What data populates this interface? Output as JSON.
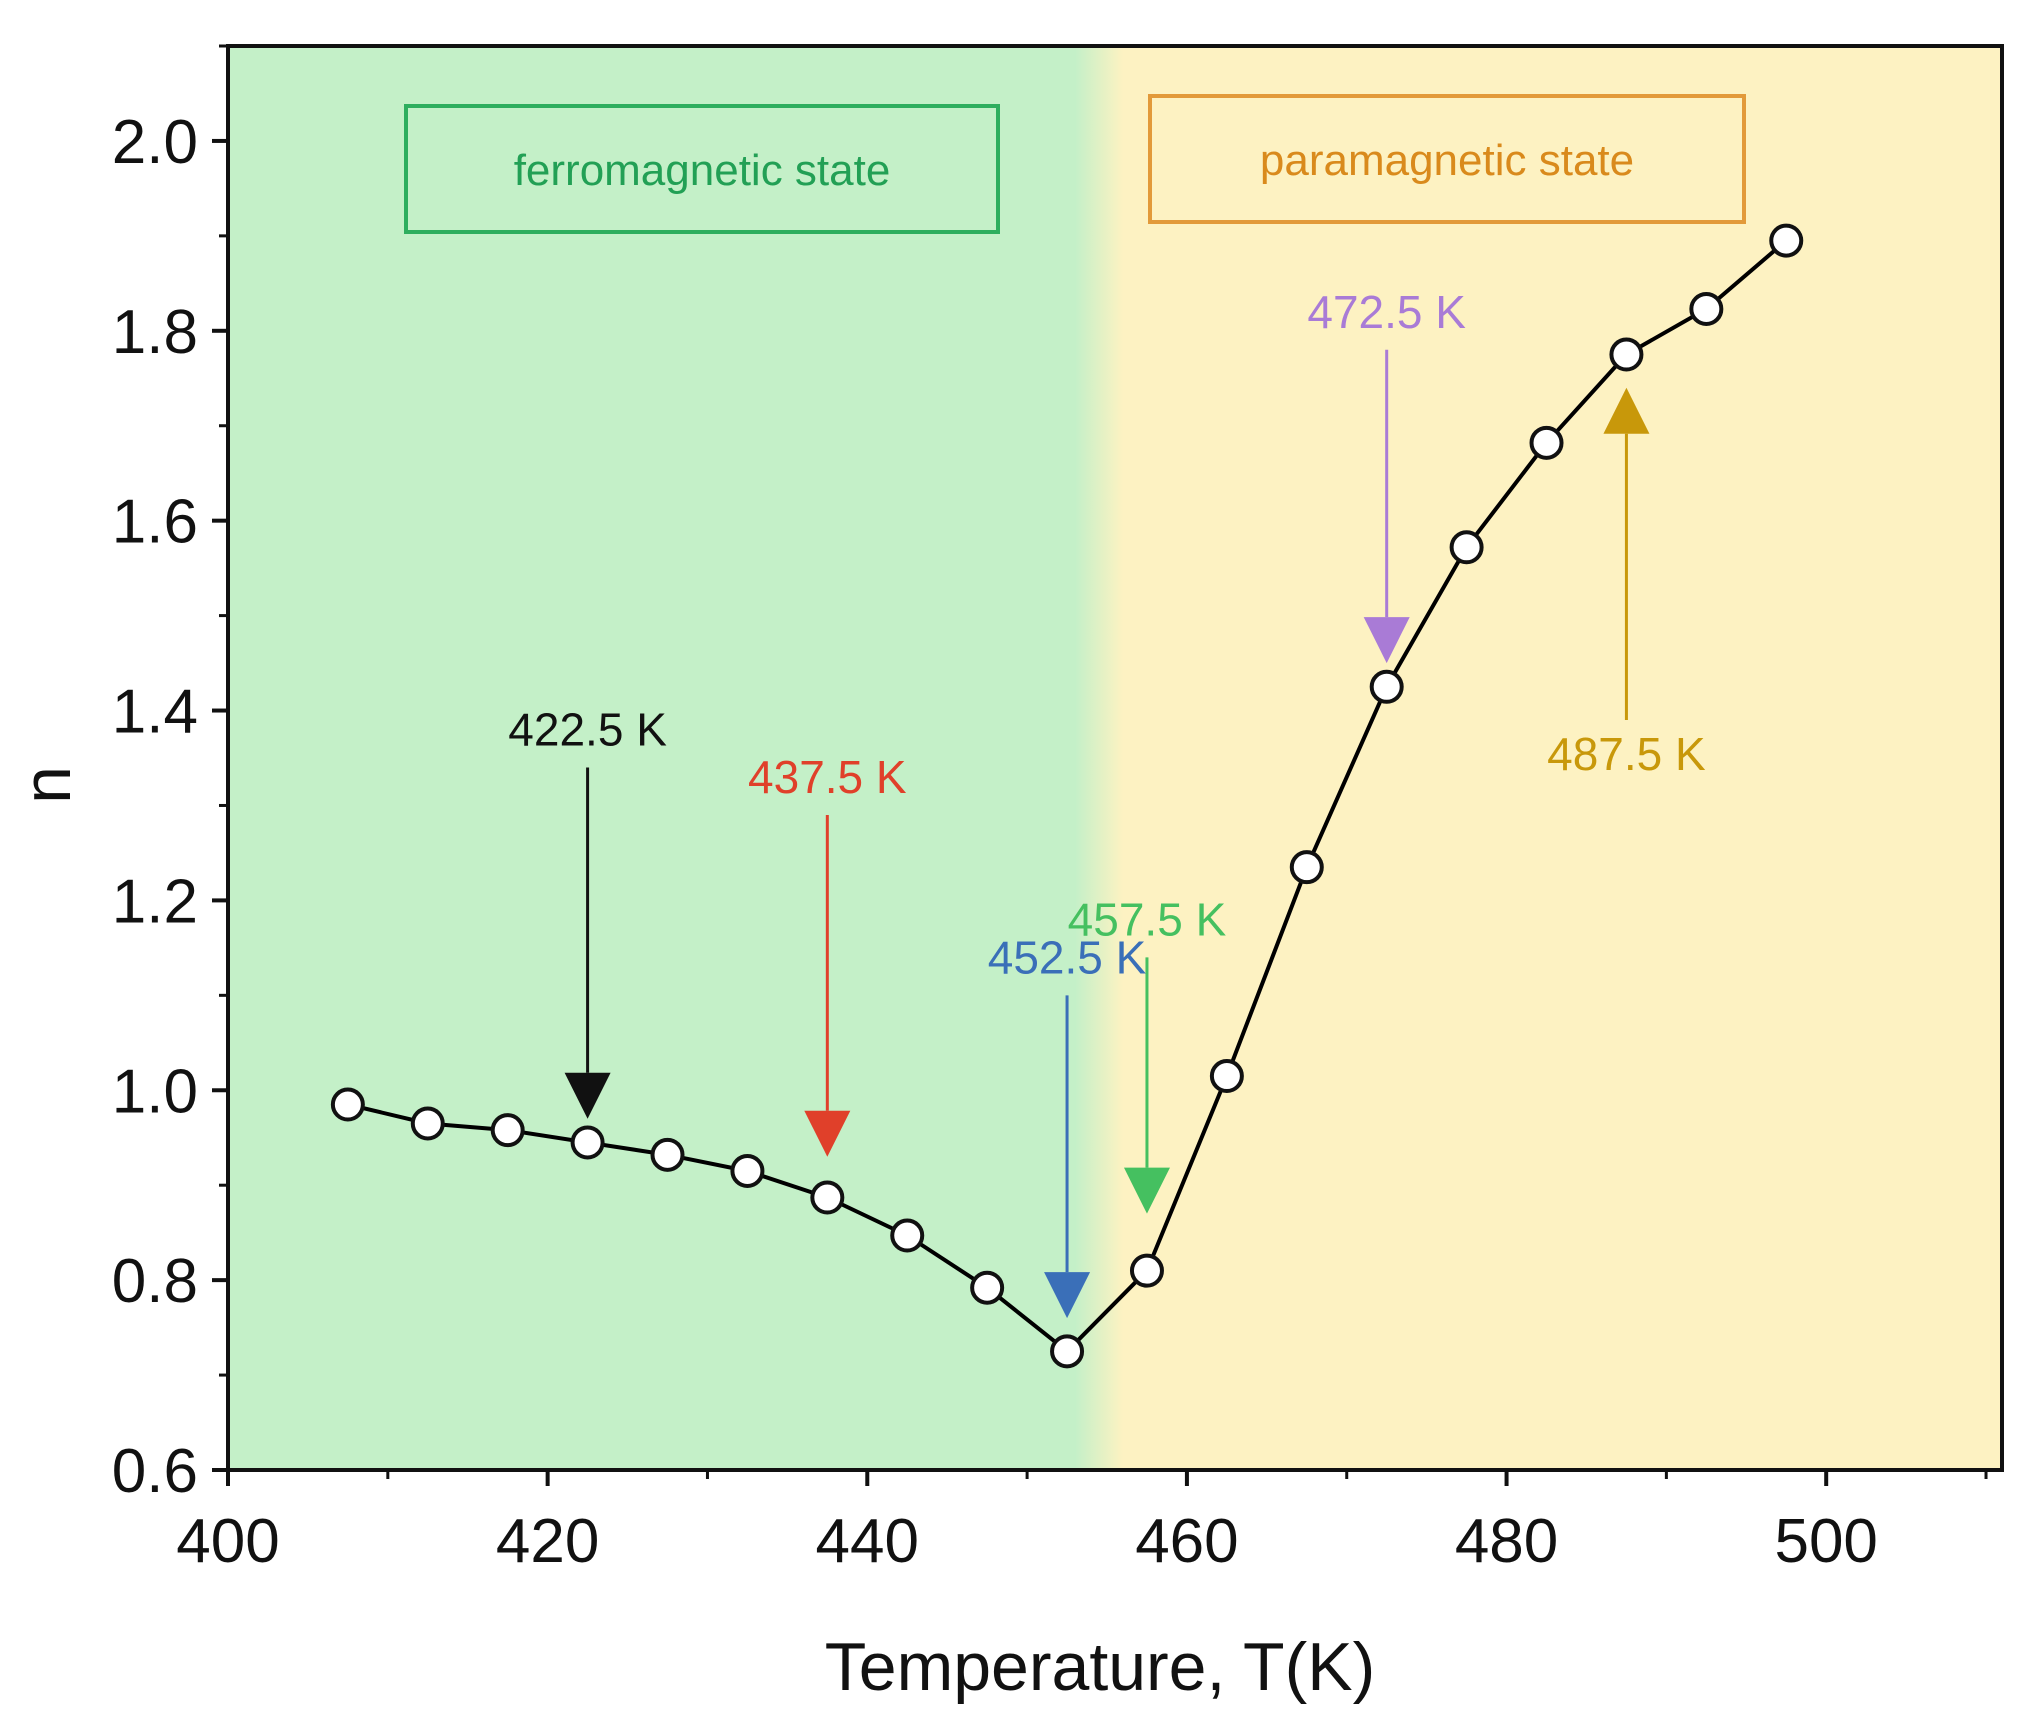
{
  "chart_data": {
    "type": "line",
    "xlabel": "Temperature, T(K)",
    "ylabel": "n",
    "xlim": [
      400,
      511
    ],
    "ylim": [
      0.6,
      2.1
    ],
    "x_ticks": [
      400,
      420,
      440,
      460,
      480,
      500
    ],
    "y_ticks": [
      0.6,
      0.8,
      1.0,
      1.2,
      1.4,
      1.6,
      1.8,
      2.0
    ],
    "x_tick_labels": [
      "400",
      "420",
      "440",
      "460",
      "480",
      "500"
    ],
    "y_tick_labels": [
      "0.6",
      "0.8",
      "1.0",
      "1.2",
      "1.4",
      "1.6",
      "1.8",
      "2.0"
    ],
    "series": [
      {
        "x": [
          407.5,
          412.5,
          417.5,
          422.5,
          427.5,
          432.5,
          437.5,
          442.5,
          447.5,
          452.5,
          457.5,
          462.5,
          467.5,
          472.5,
          477.5,
          482.5,
          487.5,
          492.5,
          497.5
        ],
        "y": [
          0.985,
          0.965,
          0.958,
          0.945,
          0.932,
          0.915,
          0.887,
          0.847,
          0.792,
          0.725,
          0.81,
          1.015,
          1.235,
          1.425,
          1.572,
          1.682,
          1.775,
          1.823,
          1.895
        ],
        "color": "#000000",
        "marker": "open-circle"
      }
    ],
    "regions": [
      {
        "label": "ferromagnetic state",
        "color": "#c4f0c8",
        "text_color": "#22a055",
        "border_color": "#2eae5e",
        "x_from": 400,
        "x_to": 453
      },
      {
        "label": "paramagnetic state",
        "color": "#fdf2c2",
        "text_color": "#d98a1c",
        "border_color": "#e29a3a",
        "x_from": 456,
        "x_to": 511
      }
    ],
    "annotations": [
      {
        "label": "422.5 K",
        "x": 422.5,
        "color": "#111111",
        "direction": "down",
        "y_tail": 1.34,
        "y_head": 0.97
      },
      {
        "label": "437.5 K",
        "x": 437.5,
        "color": "#e0402a",
        "direction": "down",
        "y_tail": 1.29,
        "y_head": 0.93
      },
      {
        "label": "452.5 K",
        "x": 452.5,
        "color": "#3a6fb8",
        "direction": "down",
        "y_tail": 1.1,
        "y_head": 0.76
      },
      {
        "label": "457.5 K",
        "x": 457.5,
        "color": "#45c060",
        "direction": "down",
        "y_tail": 1.14,
        "y_head": 0.87
      },
      {
        "label": "472.5 K",
        "x": 472.5,
        "color": "#a97bd6",
        "direction": "down",
        "y_tail": 1.78,
        "y_head": 1.45
      },
      {
        "label": "487.5 K",
        "x": 487.5,
        "color": "#c8980a",
        "direction": "up",
        "y_tail": 1.39,
        "y_head": 1.74
      }
    ]
  }
}
